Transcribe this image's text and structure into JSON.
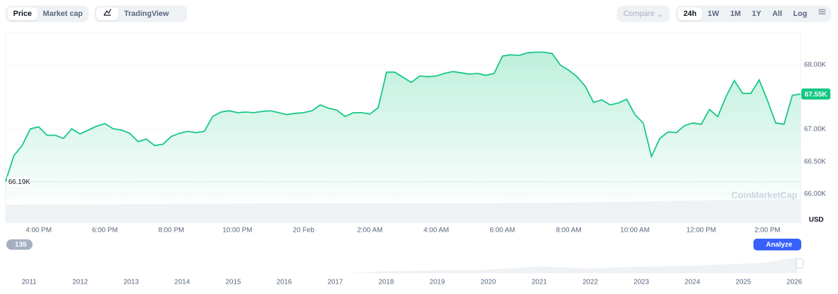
{
  "toolbar": {
    "price": "Price",
    "market_cap": "Market cap",
    "tradingview": "TradingView",
    "compare": "Compare",
    "ranges": [
      "24h",
      "1W",
      "1M",
      "1Y",
      "All"
    ],
    "log": "Log"
  },
  "chart_data": {
    "type": "line",
    "watermark": "CoinMarketCap",
    "unit": "USD",
    "series": [
      {
        "color": "#16c784",
        "values": [
          66190,
          66590,
          66750,
          67010,
          67040,
          66910,
          66910,
          66860,
          67010,
          66930,
          66990,
          67050,
          67090,
          67010,
          66990,
          66940,
          66810,
          66850,
          66750,
          66770,
          66890,
          66940,
          66970,
          66950,
          66970,
          67200,
          67270,
          67290,
          67260,
          67270,
          67260,
          67280,
          67290,
          67260,
          67230,
          67250,
          67260,
          67290,
          67380,
          67330,
          67300,
          67200,
          67260,
          67260,
          67240,
          67340,
          67890,
          67890,
          67810,
          67730,
          67830,
          67820,
          67830,
          67870,
          67900,
          67880,
          67860,
          67870,
          67840,
          67870,
          68140,
          68160,
          68150,
          68190,
          68200,
          68200,
          68180,
          68000,
          67920,
          67820,
          67670,
          67420,
          67460,
          67380,
          67410,
          67470,
          67230,
          67100,
          66580,
          66860,
          66960,
          66950,
          67060,
          67100,
          67080,
          67310,
          67200,
          67510,
          67760,
          67560,
          67560,
          67770,
          67450,
          67100,
          67080,
          67530,
          67550
        ]
      }
    ],
    "xlim": [
      0,
      24
    ],
    "xticks": [
      {
        "value": 1,
        "label": "4:00 PM"
      },
      {
        "value": 3,
        "label": "6:00 PM"
      },
      {
        "value": 5,
        "label": "8:00 PM"
      },
      {
        "value": 7,
        "label": "10:00 PM"
      },
      {
        "value": 9,
        "label": "20 Feb"
      },
      {
        "value": 11,
        "label": "2:00 AM"
      },
      {
        "value": 13,
        "label": "4:00 AM"
      },
      {
        "value": 15,
        "label": "6:00 AM"
      },
      {
        "value": 17,
        "label": "8:00 AM"
      },
      {
        "value": 19,
        "label": "10:00 AM"
      },
      {
        "value": 21,
        "label": "12:00 PM"
      },
      {
        "value": 23,
        "label": "2:00 PM"
      }
    ],
    "ylim": [
      65550,
      68495
    ],
    "yticks": [
      {
        "value": 66000,
        "label": "66.00K"
      },
      {
        "value": 66500,
        "label": "66.50K"
      },
      {
        "value": 67000,
        "label": "67.00K"
      },
      {
        "value": 68000,
        "label": "68.00K"
      }
    ],
    "grid": true,
    "min_label": {
      "value": 66190,
      "label": "66.19K"
    },
    "current_label": {
      "value": 67550,
      "label": "67.55K"
    },
    "navigator": {
      "badge": "135",
      "analyze": "Analyze",
      "years": [
        "2011",
        "2012",
        "2013",
        "2014",
        "2015",
        "2016",
        "2017",
        "2018",
        "2019",
        "2020",
        "2021",
        "2022",
        "2023",
        "2024",
        "2025",
        "2026"
      ]
    }
  }
}
